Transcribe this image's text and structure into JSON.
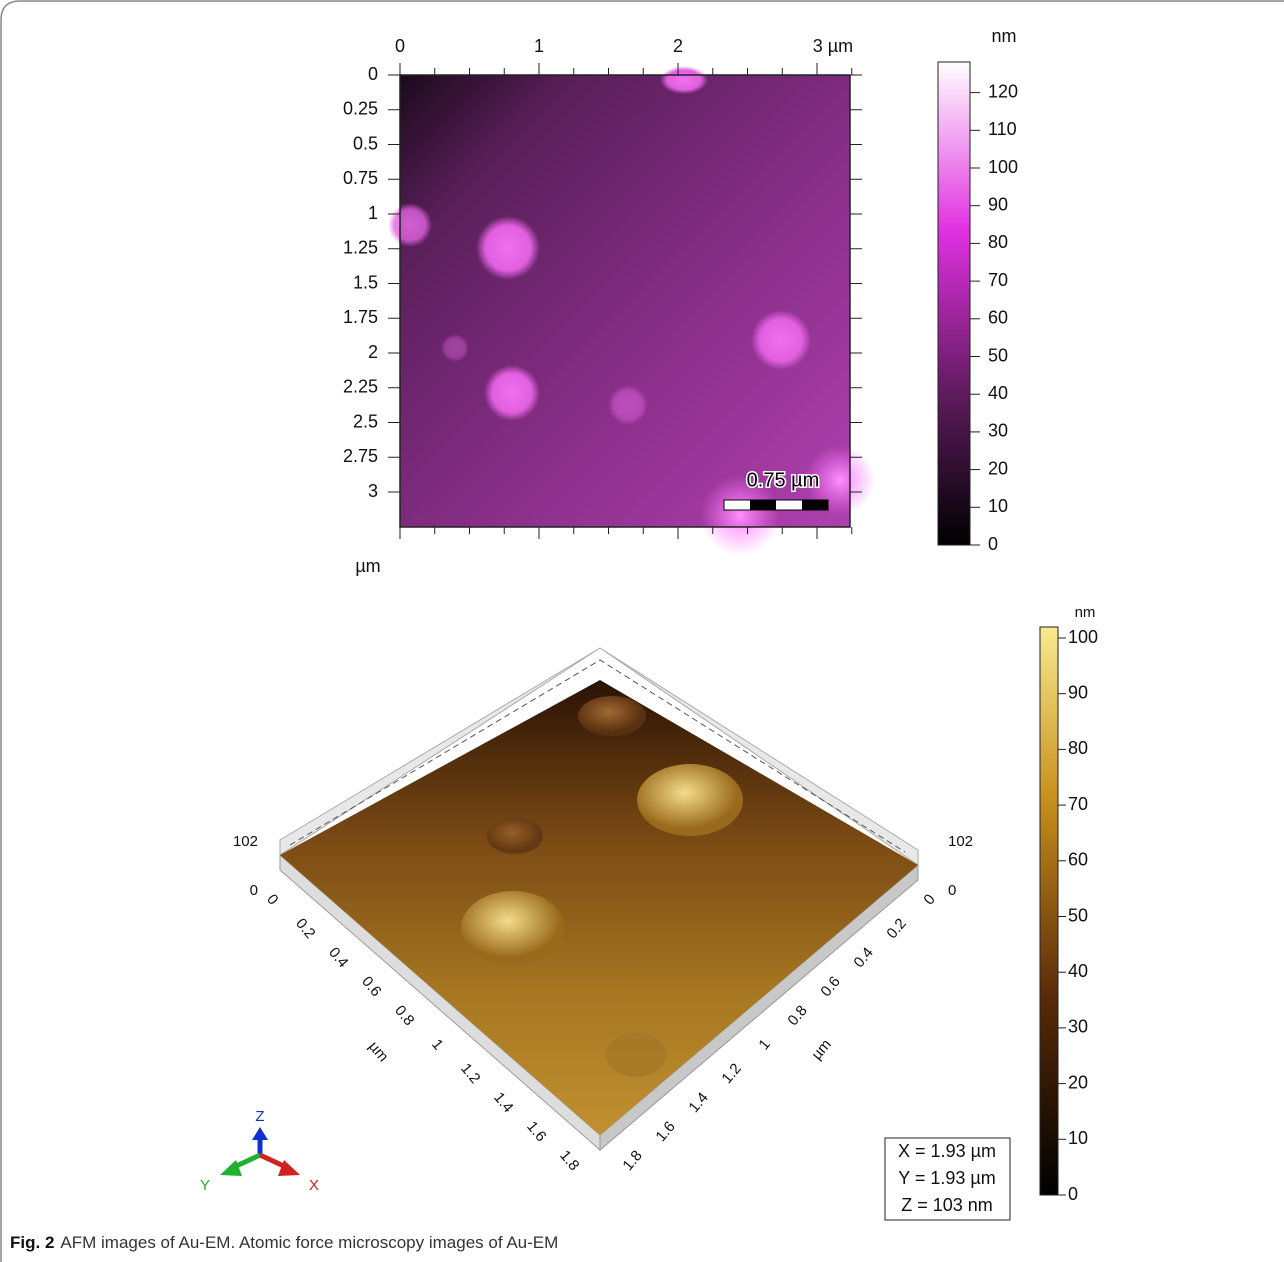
{
  "top_panel": {
    "x_ticks": [
      "0",
      "1",
      "2",
      "3 µm"
    ],
    "y_ticks": [
      "0",
      "0.25",
      "0.5",
      "0.75",
      "1",
      "1.25",
      "1.5",
      "1.75",
      "2",
      "2.25",
      "2.5",
      "2.75",
      "3"
    ],
    "y_unit": "µm",
    "scale_bar": "0.75 µm",
    "colorbar": {
      "unit": "nm",
      "ticks": [
        "0",
        "10",
        "20",
        "30",
        "40",
        "50",
        "60",
        "70",
        "80",
        "90",
        "100",
        "110",
        "120"
      ]
    }
  },
  "bottom_panel": {
    "x_ticks": [
      "0",
      "0.2",
      "0.4",
      "0.6",
      "0.8",
      "1",
      "1.2",
      "1.4",
      "1.6",
      "1.8"
    ],
    "y_ticks": [
      "0",
      "0.2",
      "0.4",
      "0.6",
      "0.8",
      "1",
      "1.2",
      "1.4",
      "1.6",
      "1.8"
    ],
    "z_ticks": [
      "0",
      "102"
    ],
    "axis_unit": "µm",
    "triad": [
      "Z",
      "Y",
      "X"
    ],
    "info_box": [
      "X = 1.93 µm",
      "Y = 1.93 µm",
      "Z = 103 nm"
    ],
    "colorbar": {
      "unit": "nm",
      "ticks": [
        "0",
        "10",
        "20",
        "30",
        "40",
        "50",
        "60",
        "70",
        "80",
        "90",
        "100"
      ]
    }
  },
  "caption": {
    "label": "Fig. 2",
    "text": "AFM images of Au-EM. Atomic force microscopy images of Au-EM"
  }
}
